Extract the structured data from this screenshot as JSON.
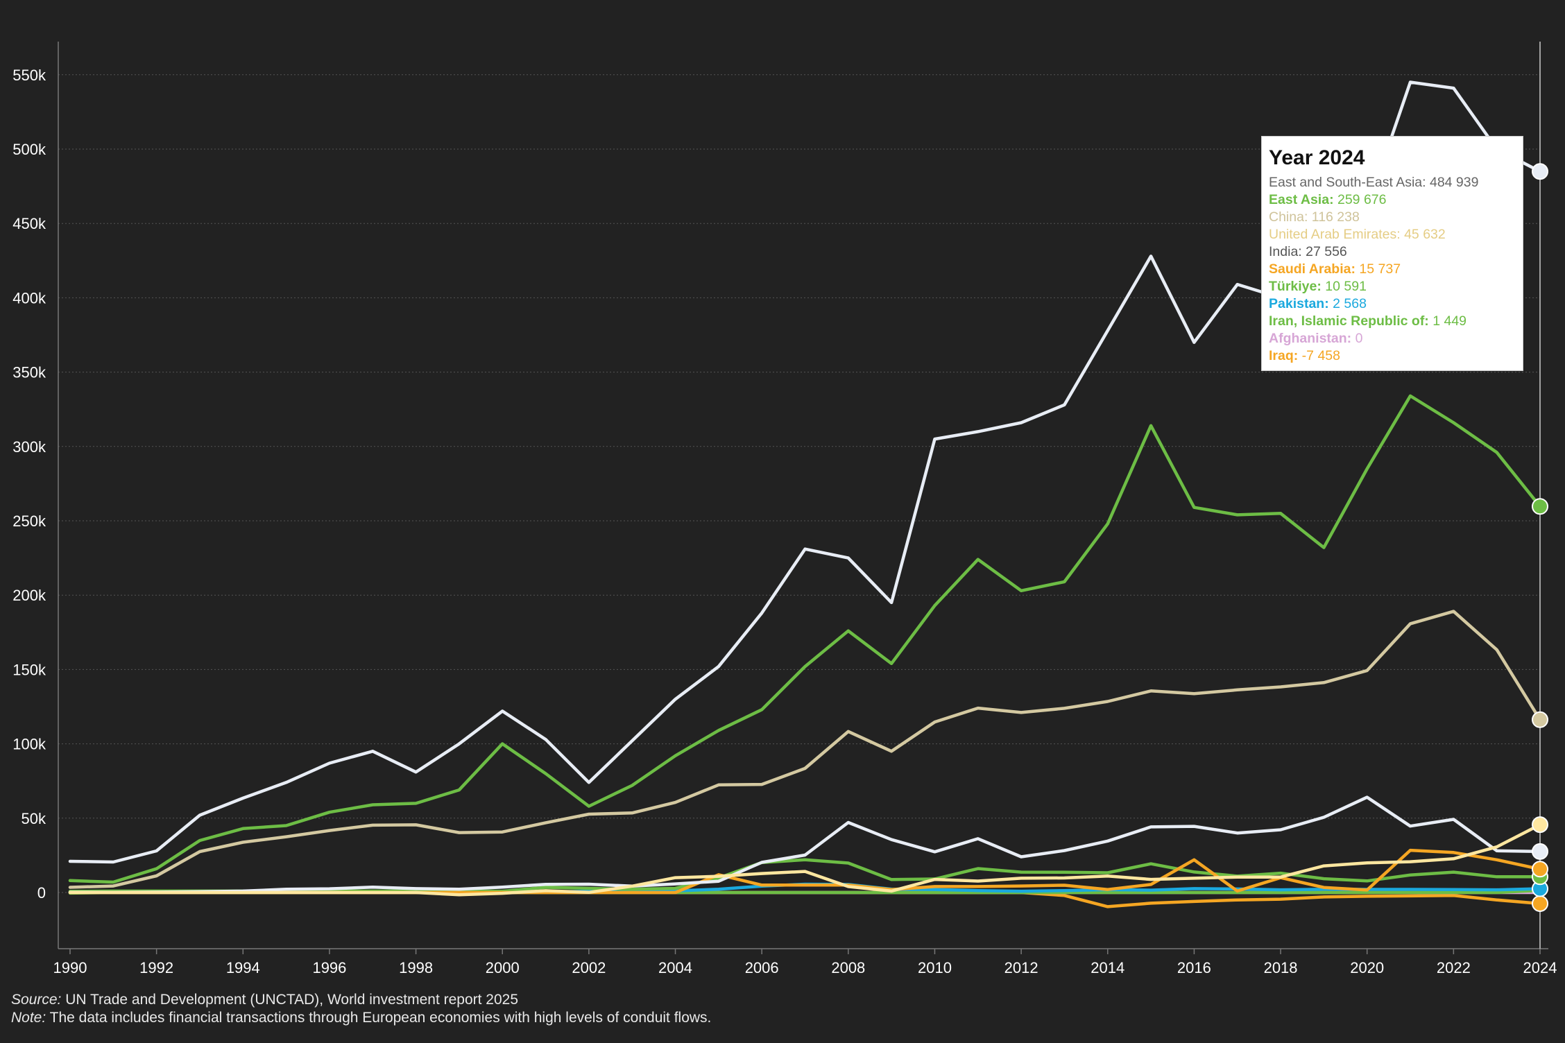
{
  "chart_data": {
    "type": "line",
    "ylim": [
      -40000,
      575000
    ],
    "yticks": [
      0,
      50000,
      100000,
      150000,
      200000,
      250000,
      300000,
      350000,
      400000,
      450000,
      500000,
      550000
    ],
    "ytick_labels": [
      "0",
      "50k",
      "100k",
      "150k",
      "200k",
      "250k",
      "300k",
      "350k",
      "400k",
      "450k",
      "500k",
      "550k"
    ],
    "x": [
      1990,
      1991,
      1992,
      1993,
      1994,
      1995,
      1996,
      1997,
      1998,
      1999,
      2000,
      2001,
      2002,
      2003,
      2004,
      2005,
      2006,
      2007,
      2008,
      2009,
      2010,
      2011,
      2012,
      2013,
      2014,
      2015,
      2016,
      2017,
      2018,
      2019,
      2020,
      2021,
      2022,
      2023,
      2024
    ],
    "xticks": [
      1990,
      1992,
      1994,
      1996,
      1998,
      2000,
      2002,
      2004,
      2006,
      2008,
      2010,
      2012,
      2014,
      2016,
      2018,
      2020,
      2022,
      2024
    ],
    "xtick_labels": [
      "1990",
      "1992",
      "1994",
      "1996",
      "1998",
      "2000",
      "2002",
      "2004",
      "2006",
      "2008",
      "2010",
      "2012",
      "2014",
      "2016",
      "2018",
      "2020",
      "2022",
      "2024"
    ],
    "grid": true,
    "highlight_year": 2024,
    "series": [
      {
        "name": "East and South-East Asia",
        "color": "#e8edf5",
        "values": [
          21000,
          20500,
          28000,
          52000,
          63500,
          74000,
          87000,
          95000,
          81000,
          100000,
          122000,
          103000,
          74000,
          102000,
          130000,
          152000,
          188000,
          231000,
          225000,
          195000,
          305000,
          310000,
          316000,
          328000,
          378000,
          428000,
          370000,
          409000,
          400000,
          415000,
          460000,
          545000,
          541000,
          500000,
          484939
        ]
      },
      {
        "name": "East Asia",
        "color": "#6dbd45",
        "values": [
          8000,
          7000,
          16000,
          35000,
          43000,
          45000,
          54000,
          59000,
          60000,
          69000,
          100000,
          80000,
          58000,
          72000,
          92000,
          109000,
          123000,
          152000,
          176000,
          154000,
          193000,
          224000,
          203000,
          209000,
          248000,
          314000,
          259000,
          254000,
          255000,
          232000,
          285000,
          334000,
          316000,
          296000,
          259676
        ]
      },
      {
        "name": "China",
        "color": "#d4c9a1",
        "values": [
          3500,
          4400,
          11200,
          27500,
          33800,
          37500,
          41700,
          45300,
          45500,
          40300,
          40700,
          46900,
          52700,
          53500,
          60600,
          72400,
          72700,
          83500,
          108300,
          95000,
          114700,
          124000,
          121100,
          123900,
          128500,
          135600,
          133700,
          136300,
          138300,
          141200,
          149300,
          180800,
          189100,
          163300,
          116238
        ]
      },
      {
        "name": "United Arab Emirates",
        "color": "#ffe7a0",
        "values": [
          0,
          0,
          0,
          0,
          0,
          0,
          0,
          0,
          0,
          -1500,
          -500,
          1200,
          100,
          4300,
          10000,
          10900,
          12800,
          14200,
          4000,
          1000,
          8800,
          7700,
          9600,
          9800,
          11100,
          8800,
          9600,
          10400,
          10400,
          17900,
          19900,
          20700,
          22700,
          30700,
          45632
        ]
      },
      {
        "name": "India",
        "color": "#e8edf5",
        "values": [
          200,
          100,
          300,
          600,
          1000,
          2200,
          2500,
          3600,
          2600,
          2200,
          3600,
          5500,
          5600,
          4300,
          5800,
          7600,
          20300,
          25200,
          47100,
          35600,
          27400,
          36200,
          24000,
          28200,
          34600,
          44100,
          44500,
          40000,
          42200,
          50600,
          64100,
          44700,
          49200,
          28100,
          27556
        ]
      },
      {
        "name": "Saudi Arabia",
        "color": "#f5a623",
        "values": [
          0,
          0,
          0,
          0,
          0,
          0,
          0,
          0,
          0,
          0,
          0,
          0,
          0,
          0,
          0,
          12000,
          5000,
          5000,
          5000,
          2000,
          4000,
          4000,
          4400,
          4900,
          2000,
          5400,
          22000,
          1000,
          10000,
          3400,
          1700,
          28400,
          26900,
          22000,
          15737
        ]
      },
      {
        "name": "Türkiye",
        "color": "#6dbd45",
        "values": [
          800,
          1000,
          1000,
          1000,
          1000,
          1000,
          1000,
          1000,
          1000,
          1000,
          900,
          3500,
          2800,
          2200,
          2800,
          9800,
          20200,
          22000,
          19800,
          8700,
          9100,
          16100,
          13700,
          13600,
          13300,
          19300,
          13800,
          11000,
          13000,
          9300,
          7800,
          11800,
          13700,
          10600,
          10591
        ]
      },
      {
        "name": "Pakistan",
        "color": "#1ba9de",
        "values": [
          300,
          300,
          300,
          300,
          400,
          700,
          900,
          700,
          500,
          500,
          300,
          400,
          800,
          500,
          1100,
          2200,
          4300,
          5600,
          5400,
          2300,
          2000,
          1300,
          900,
          1300,
          1900,
          1600,
          2600,
          2400,
          1800,
          2200,
          2100,
          2100,
          2000,
          1800,
          2568
        ]
      },
      {
        "name": "Iran, Islamic Republic of:",
        "color": "#6dbd45",
        "values": [
          -400,
          0,
          0,
          0,
          0,
          0,
          0,
          0,
          0,
          0,
          0,
          0,
          0,
          0,
          0,
          0,
          0,
          0,
          0,
          0,
          0,
          0,
          0,
          0,
          0,
          0,
          0,
          0,
          0,
          0,
          0,
          0,
          0,
          0,
          1449
        ]
      },
      {
        "name": "Afghanistan",
        "color": "#d7a6d6",
        "values": [
          0,
          0,
          0,
          0,
          0,
          0,
          0,
          0,
          0,
          0,
          0,
          0,
          0,
          0,
          0,
          0,
          0,
          0,
          0,
          0,
          0,
          0,
          0,
          0,
          0,
          0,
          0,
          0,
          0,
          0,
          0,
          0,
          0,
          0,
          0
        ]
      },
      {
        "name": "Iraq",
        "color": "#f5a623",
        "values": [
          0,
          0,
          0,
          0,
          0,
          0,
          0,
          0,
          0,
          0,
          0,
          0,
          0,
          0,
          0,
          0,
          0,
          0,
          0,
          0,
          0,
          0,
          0,
          -2000,
          -9500,
          -7200,
          -6000,
          -5000,
          -4500,
          -3000,
          -2500,
          -2300,
          -2000,
          -5000,
          -7458
        ]
      }
    ]
  },
  "tooltip": {
    "title": "Year 2024",
    "rows": [
      {
        "label": "East and South-East Asia:",
        "value": "484 939",
        "color": "#666666",
        "bold": false
      },
      {
        "label": "East Asia:",
        "value": "259 676",
        "color": "#6dbd45",
        "bold": true
      },
      {
        "label": "China:",
        "value": "116 238",
        "color": "#cfc39a",
        "bold": false
      },
      {
        "label": "United Arab Emirates:",
        "value": "45 632",
        "color": "#e5cd85",
        "bold": false
      },
      {
        "label": "India:",
        "value": "27 556",
        "color": "#555555",
        "bold": false
      },
      {
        "label": "Saudi Arabia:",
        "value": "15 737",
        "color": "#f5a623",
        "bold": true
      },
      {
        "label": "Türkiye:",
        "value": "10 591",
        "color": "#6dbd45",
        "bold": true
      },
      {
        "label": "Pakistan:",
        "value": "2 568",
        "color": "#1ba9de",
        "bold": true
      },
      {
        "label": "Iran, Islamic Republic of:",
        "value": "1 449",
        "color": "#6dbd45",
        "bold": true
      },
      {
        "label": "Afghanistan:",
        "value": "0",
        "color": "#d7a6d6",
        "bold": true
      },
      {
        "label": "Iraq:",
        "value": "-7 458",
        "color": "#f5a623",
        "bold": true
      }
    ]
  },
  "footer": {
    "source_label": "Source:",
    "source_text": " UN Trade and Development (UNCTAD), World investment report 2025",
    "note_label": "Note:",
    "note_text": " The data includes financial transactions through European economies with high levels of conduit flows."
  }
}
